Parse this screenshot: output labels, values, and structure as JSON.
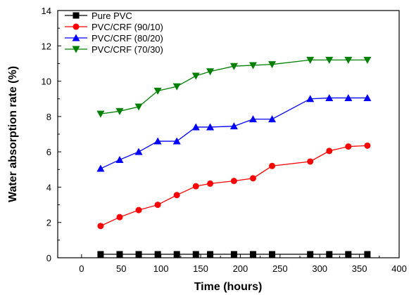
{
  "chart_data": {
    "type": "line",
    "xlabel": "Time (hours)",
    "ylabel": "Water absorption rate (%)",
    "xlim": [
      -30,
      400
    ],
    "ylim": [
      0,
      14
    ],
    "xticks": [
      0,
      50,
      100,
      150,
      200,
      250,
      300,
      350,
      400
    ],
    "yticks": [
      0,
      2,
      4,
      6,
      8,
      10,
      12,
      14
    ],
    "grid": false,
    "legend_position": "top-left",
    "series": [
      {
        "name": "Pure PVC",
        "color": "#000000",
        "marker": "square",
        "x": [
          24,
          48,
          72,
          96,
          120,
          144,
          162,
          192,
          216,
          240,
          288,
          312,
          336,
          360
        ],
        "y": [
          0.2,
          0.2,
          0.2,
          0.2,
          0.2,
          0.2,
          0.2,
          0.2,
          0.2,
          0.2,
          0.2,
          0.2,
          0.2,
          0.2
        ]
      },
      {
        "name": "PVC/CRF (90/10)",
        "color": "#ff0000",
        "marker": "circle",
        "x": [
          24,
          48,
          72,
          96,
          120,
          144,
          162,
          192,
          216,
          240,
          288,
          312,
          336,
          360
        ],
        "y": [
          1.8,
          2.3,
          2.7,
          3.0,
          3.55,
          4.05,
          4.2,
          4.35,
          4.5,
          5.2,
          5.45,
          6.05,
          6.3,
          6.35
        ]
      },
      {
        "name": "PVC/CRF (80/20)",
        "color": "#0000ff",
        "marker": "triangle-up",
        "x": [
          24,
          48,
          72,
          96,
          120,
          144,
          162,
          192,
          216,
          240,
          288,
          312,
          336,
          360
        ],
        "y": [
          5.05,
          5.55,
          6.0,
          6.6,
          6.6,
          7.4,
          7.4,
          7.45,
          7.85,
          7.85,
          9.0,
          9.05,
          9.05,
          9.05
        ]
      },
      {
        "name": "PVC/CRF (70/30)",
        "color": "#008000",
        "marker": "triangle-down",
        "x": [
          24,
          48,
          72,
          96,
          120,
          144,
          162,
          192,
          216,
          240,
          288,
          312,
          336,
          360
        ],
        "y": [
          8.15,
          8.3,
          8.55,
          9.45,
          9.7,
          10.3,
          10.55,
          10.85,
          10.9,
          10.95,
          11.2,
          11.2,
          11.2,
          11.2
        ]
      }
    ]
  }
}
